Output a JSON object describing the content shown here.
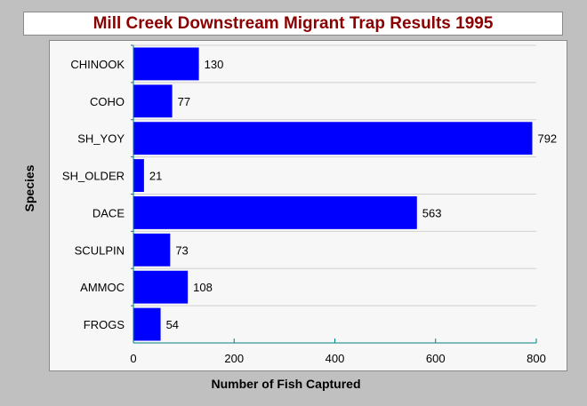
{
  "chart_data": {
    "type": "bar",
    "orientation": "horizontal",
    "title": "Mill Creek Downstream Migrant Trap Results 1995",
    "xlabel": "Number of Fish Captured",
    "ylabel": "Species",
    "categories": [
      "CHINOOK",
      "COHO",
      "SH_YOY",
      "SH_OLDER",
      "DACE",
      "SCULPIN",
      "AMMOC",
      "FROGS"
    ],
    "values": [
      130,
      77,
      792,
      21,
      563,
      73,
      108,
      54
    ],
    "xlim": [
      0,
      800
    ],
    "xticks": [
      0,
      200,
      400,
      600,
      800
    ],
    "grid": "horizontal",
    "bar_color": "#0000ff",
    "axis_color": "#008080",
    "legend": "none"
  }
}
